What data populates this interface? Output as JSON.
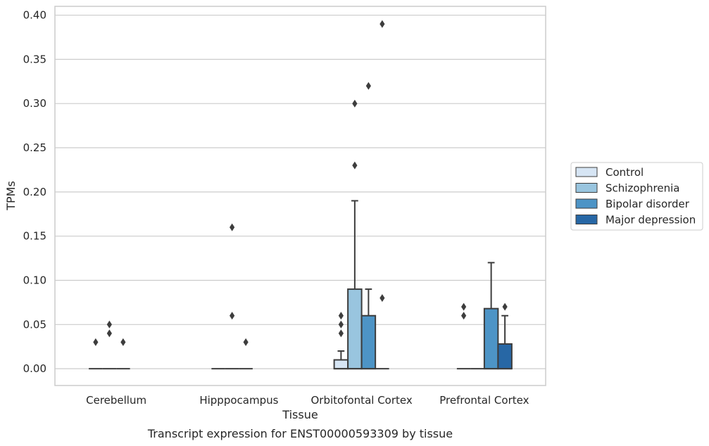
{
  "chart_data": {
    "type": "boxplot",
    "title": "Transcript expression for ENST00000593309 by tissue",
    "xlabel": "Tissue",
    "ylabel": "TPMs",
    "ylim": [
      -0.019,
      0.41
    ],
    "yticks": [
      "0.00",
      "0.05",
      "0.10",
      "0.15",
      "0.20",
      "0.25",
      "0.30",
      "0.35",
      "0.40"
    ],
    "grid": true,
    "legend_position": "right",
    "categories": [
      "Cerebellum",
      "Hipppocampus",
      "Orbitofontal Cortex",
      "Prefrontal Cortex"
    ],
    "series": [
      {
        "name": "Control",
        "color": "#d6e5f4",
        "boxes": [
          {
            "q1": 0,
            "median": 0,
            "q3": 0,
            "whisker_low": 0,
            "whisker_high": 0,
            "outliers": [
              0.03
            ]
          },
          {
            "q1": 0,
            "median": 0,
            "q3": 0,
            "whisker_low": 0,
            "whisker_high": 0,
            "outliers": []
          },
          {
            "q1": 0,
            "median": 0,
            "q3": 0.01,
            "whisker_low": 0,
            "whisker_high": 0.02,
            "outliers": [
              0.04,
              0.05,
              0.06
            ]
          },
          {
            "q1": 0,
            "median": 0,
            "q3": 0,
            "whisker_low": 0,
            "whisker_high": 0,
            "outliers": [
              0.06,
              0.07
            ]
          }
        ]
      },
      {
        "name": "Schizophrenia",
        "color": "#99c5df",
        "boxes": [
          {
            "q1": 0,
            "median": 0,
            "q3": 0,
            "whisker_low": 0,
            "whisker_high": 0,
            "outliers": [
              0.04,
              0.05
            ]
          },
          {
            "q1": 0,
            "median": 0,
            "q3": 0,
            "whisker_low": 0,
            "whisker_high": 0,
            "outliers": [
              0.06,
              0.16
            ]
          },
          {
            "q1": 0,
            "median": 0,
            "q3": 0.09,
            "whisker_low": 0,
            "whisker_high": 0.19,
            "outliers": [
              0.23,
              0.3
            ]
          },
          {
            "q1": 0,
            "median": 0,
            "q3": 0,
            "whisker_low": 0,
            "whisker_high": 0,
            "outliers": []
          }
        ]
      },
      {
        "name": "Bipolar disorder",
        "color": "#4d94c6",
        "boxes": [
          {
            "q1": 0,
            "median": 0,
            "q3": 0,
            "whisker_low": 0,
            "whisker_high": 0,
            "outliers": [
              0.03
            ]
          },
          {
            "q1": 0,
            "median": 0,
            "q3": 0,
            "whisker_low": 0,
            "whisker_high": 0,
            "outliers": [
              0.03
            ]
          },
          {
            "q1": 0,
            "median": 0,
            "q3": 0.06,
            "whisker_low": 0,
            "whisker_high": 0.09,
            "outliers": [
              0.32
            ]
          },
          {
            "q1": 0,
            "median": 0,
            "q3": 0.068,
            "whisker_low": 0,
            "whisker_high": 0.12,
            "outliers": []
          }
        ]
      },
      {
        "name": "Major depression",
        "color": "#2767a5",
        "boxes": [
          null,
          null,
          {
            "q1": 0,
            "median": 0,
            "q3": 0,
            "whisker_low": 0,
            "whisker_high": 0,
            "outliers": [
              0.08,
              0.39
            ]
          },
          {
            "q1": 0,
            "median": 0,
            "q3": 0.028,
            "whisker_low": 0,
            "whisker_high": 0.06,
            "outliers": [
              0.07
            ]
          }
        ]
      }
    ]
  }
}
